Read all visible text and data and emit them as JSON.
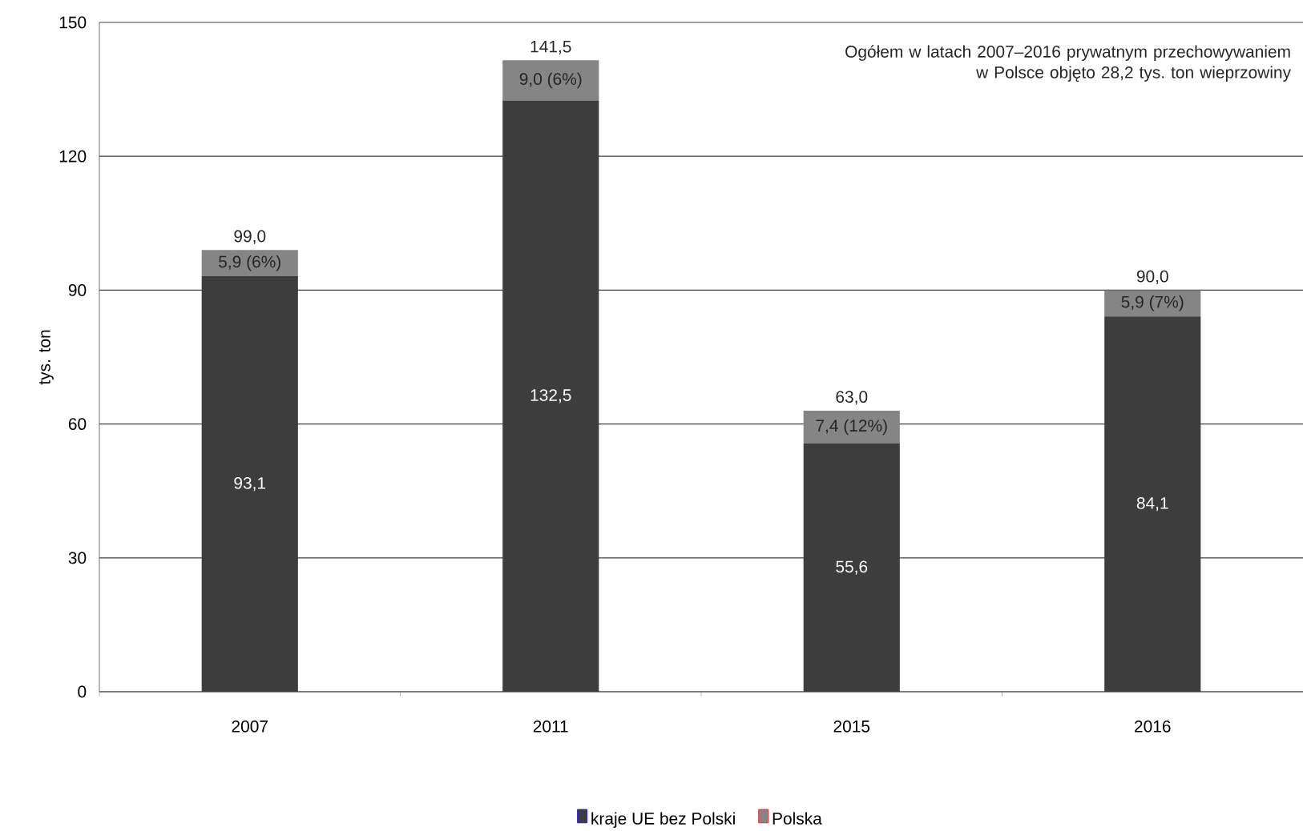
{
  "chart_data": {
    "type": "bar",
    "stacked": true,
    "ylabel": "tys. ton",
    "categories": [
      "2007",
      "2011",
      "2015",
      "2016"
    ],
    "series": [
      {
        "name": "kraje UE bez Polski",
        "color": "#3d3d3d",
        "values": [
          93.1,
          132.5,
          55.6,
          84.1
        ],
        "value_labels": [
          "93,1",
          "132,5",
          "55,6",
          "84,1"
        ]
      },
      {
        "name": "Polska",
        "color": "#858585",
        "values": [
          5.9,
          9.0,
          7.4,
          5.9
        ],
        "value_labels": [
          "5,9 (6%)",
          "9,0 (6%)",
          "7,4 (12%)",
          "5,9 (7%)"
        ]
      }
    ],
    "totals": [
      "99,0",
      "141,5",
      "63,0",
      "90,0"
    ],
    "ylim": [
      0,
      150
    ],
    "yticks": [
      0,
      30,
      60,
      90,
      120,
      150
    ],
    "grid": "y",
    "legend": "bottom",
    "annotations": [
      "Ogółem w latach 2007–2016 prywatnym przechowywaniem w Polsce objęto 28,2 tys. ton wieprzowiny"
    ]
  }
}
